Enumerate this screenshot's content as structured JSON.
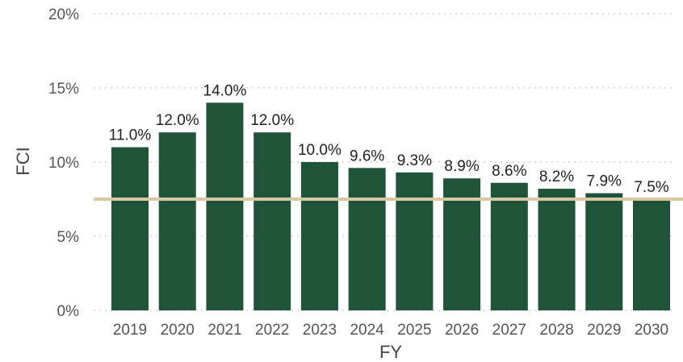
{
  "chart_data": {
    "type": "bar",
    "title": "",
    "xlabel": "FY",
    "ylabel": "FCI",
    "categories": [
      "2019",
      "2020",
      "2021",
      "2022",
      "2023",
      "2024",
      "2025",
      "2026",
      "2027",
      "2028",
      "2029",
      "2030"
    ],
    "series": [
      {
        "values": [
          11.0,
          12.0,
          14.0,
          12.0,
          10.0,
          9.6,
          9.3,
          8.9,
          8.6,
          8.2,
          7.9,
          7.5
        ]
      }
    ],
    "data_labels": [
      "11.0%",
      "12.0%",
      "14.0%",
      "12.0%",
      "10.0%",
      "9.6%",
      "9.3%",
      "8.9%",
      "8.6%",
      "8.2%",
      "7.9%",
      "7.5%"
    ],
    "ylim": [
      0,
      20
    ],
    "yticks": [
      0,
      5,
      10,
      15,
      20
    ],
    "ytick_labels": [
      "0%",
      "5%",
      "10%",
      "15%",
      "20%"
    ],
    "grid": "horizontal dotted",
    "reference_line": {
      "value": 7.5,
      "color": "#d9c9a3"
    },
    "colors": {
      "bar": "#1f5438",
      "grid": "#d0d0d0"
    }
  }
}
